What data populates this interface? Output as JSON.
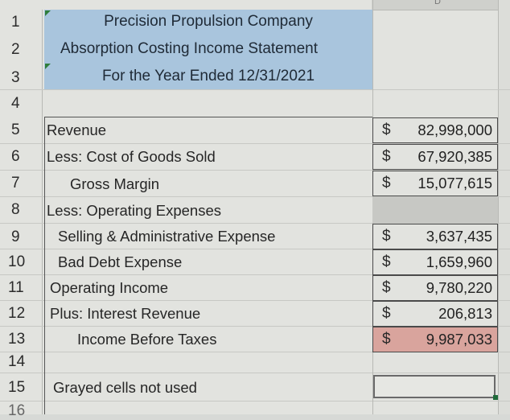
{
  "column_header": "D",
  "title": {
    "line1": "Precision Propulsion Company",
    "line2": "Absorption Costing Income Statement",
    "line3": "For the Year Ended 12/31/2021"
  },
  "rows": [
    {
      "num": "1"
    },
    {
      "num": "2"
    },
    {
      "num": "3"
    },
    {
      "num": "4"
    },
    {
      "num": "5",
      "label": "Revenue",
      "dollar": "$",
      "amount": "82,998,000"
    },
    {
      "num": "6",
      "label": "Less: Cost of Goods Sold",
      "dollar": "$",
      "amount": "67,920,385"
    },
    {
      "num": "7",
      "label": "Gross Margin",
      "dollar": "$",
      "amount": "15,077,615"
    },
    {
      "num": "8",
      "label": "Less: Operating Expenses"
    },
    {
      "num": "9",
      "label": "Selling & Administrative Expense",
      "dollar": "$",
      "amount": "3,637,435"
    },
    {
      "num": "10",
      "label": "Bad Debt Expense",
      "dollar": "$",
      "amount": "1,659,960"
    },
    {
      "num": "11",
      "label": "Operating Income",
      "dollar": "$",
      "amount": "9,780,220"
    },
    {
      "num": "12",
      "label": "Plus: Interest Revenue",
      "dollar": "$",
      "amount": "206,813"
    },
    {
      "num": "13",
      "label": "Income Before Taxes",
      "dollar": "$",
      "amount": "9,987,033"
    },
    {
      "num": "14"
    },
    {
      "num": "15",
      "label": "Grayed cells not used"
    },
    {
      "num": "16"
    }
  ],
  "colors": {
    "title_fill": "#a9c5dd",
    "grey_fill": "#c7c8c4",
    "highlight_fill": "#d9a49d",
    "triangle": "#2f7d3b"
  }
}
